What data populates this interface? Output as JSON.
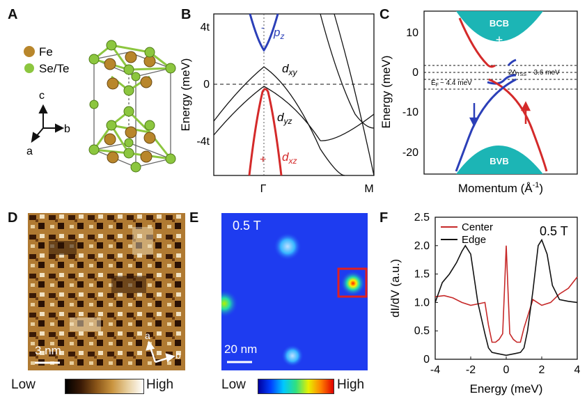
{
  "panels": {
    "A": {
      "letter": "A",
      "legend": [
        {
          "label": "Fe",
          "color": "#b8862b"
        },
        {
          "label": "Se/Te",
          "color": "#8cc63f"
        }
      ],
      "axes": {
        "c": "c",
        "b": "b",
        "a": "a"
      }
    },
    "B": {
      "letter": "B",
      "ylabel": "Energy (meV)",
      "yticks": [
        "4t",
        "0",
        "-4t"
      ],
      "xticks": [
        "Γ",
        "M"
      ],
      "labels": {
        "pz": "p",
        "pz_sub": "z",
        "dxy": "d",
        "dxy_sub": "xy",
        "dyz": "d",
        "dyz_sub": "yz",
        "dxz": "d",
        "dxz_sub": "xz"
      },
      "marks": {
        "minus": "-",
        "plus": "+"
      },
      "colors": {
        "pz": "#2b3fb8",
        "dxz": "#d42a2a"
      }
    },
    "C": {
      "letter": "C",
      "ylabel": "Energy (meV)",
      "xlabel": "Momentum (Å",
      "xlabel_sup": "-1",
      "xlabel_end": ")",
      "yticks": [
        "10",
        "0",
        "-10",
        "-20"
      ],
      "bcb": "BCB",
      "bcb_sign": "+",
      "bvb": "BVB",
      "bvb_sign": "-",
      "gap_note": "2Δ",
      "gap_sub": "TSS",
      "gap_value": "~ 3.6 meV",
      "ef_note": "E",
      "ef_sub": "F",
      "ef_value": "~ 4.4 meV",
      "colors": {
        "band": "#1cb5b5",
        "up": "#d42a2a",
        "down": "#2b3fb8"
      }
    },
    "D": {
      "letter": "D",
      "scale": "3 nm",
      "axis_a": "a",
      "axis_b": "b",
      "cbar_low": "Low",
      "cbar_high": "High"
    },
    "E": {
      "letter": "E",
      "field": "0.5 T",
      "scale": "20 nm",
      "cbar_low": "Low",
      "cbar_high": "High"
    },
    "F": {
      "letter": "F",
      "ylabel": "dI/dV (a.u.)",
      "xlabel": "Energy (meV)",
      "field": "0.5 T",
      "yticks": [
        "2.5",
        "2.0",
        "1.5",
        "1.0",
        "0.5",
        "0"
      ],
      "xticks": [
        "-4",
        "-2",
        "0",
        "2",
        "4"
      ],
      "legend": [
        {
          "label": "Center",
          "color": "#c62828"
        },
        {
          "label": "Edge",
          "color": "#111111"
        }
      ]
    }
  },
  "chart_data": [
    {
      "type": "line",
      "title": "",
      "xlabel": "Energy (meV)",
      "ylabel": "dI/dV (a.u.)",
      "xlim": [
        -4,
        4
      ],
      "ylim": [
        0,
        2.5
      ],
      "series": [
        {
          "name": "Center",
          "x": [
            -4,
            -3.5,
            -3,
            -2.5,
            -2,
            -1.5,
            -1.2,
            -1.0,
            -0.8,
            -0.6,
            -0.4,
            -0.2,
            -0.1,
            0,
            0.1,
            0.2,
            0.4,
            0.6,
            0.8,
            1.0,
            1.5,
            2,
            2.5,
            3,
            3.5,
            4
          ],
          "y": [
            1.1,
            1.12,
            1.08,
            1.0,
            0.95,
            0.98,
            1.0,
            0.6,
            0.3,
            0.3,
            0.35,
            0.45,
            1.2,
            2.0,
            1.2,
            0.45,
            0.35,
            0.3,
            0.3,
            0.55,
            1.05,
            0.95,
            1.0,
            1.15,
            1.25,
            1.45
          ]
        },
        {
          "name": "Edge",
          "x": [
            -4,
            -3.6,
            -3.2,
            -2.8,
            -2.5,
            -2.3,
            -2.0,
            -1.6,
            -1.2,
            -1.0,
            -0.8,
            -0.5,
            0,
            0.5,
            0.8,
            1.0,
            1.2,
            1.5,
            1.8,
            2.0,
            2.3,
            2.6,
            3.0,
            3.5,
            4
          ],
          "y": [
            1.0,
            1.35,
            1.5,
            1.7,
            1.9,
            2.0,
            1.85,
            1.0,
            0.45,
            0.2,
            0.12,
            0.1,
            0.07,
            0.1,
            0.12,
            0.2,
            0.5,
            1.2,
            2.0,
            2.1,
            1.85,
            1.3,
            1.05,
            1.02,
            1.0
          ]
        }
      ]
    }
  ]
}
